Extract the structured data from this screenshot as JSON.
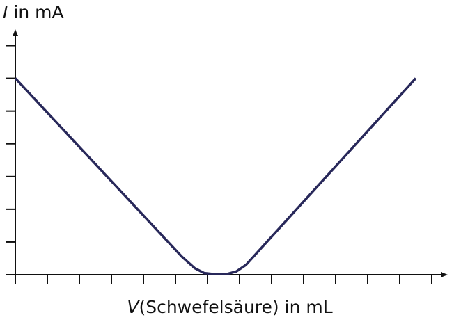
{
  "chart_data": {
    "type": "line",
    "ylabel_symbol": "I",
    "ylabel": "in mA",
    "xlabel_symbol": "V",
    "xlabel": "(Schwefelsäure) in mL",
    "x": [
      0,
      5.2,
      5.6,
      5.9,
      6.2,
      6.6,
      6.9,
      7.2,
      12.5
    ],
    "series": [
      {
        "color": "#28285a",
        "values": [
          6,
          0.55,
          0.2,
          0.05,
          0.02,
          0.02,
          0.1,
          0.3,
          6
        ]
      }
    ],
    "xlim": [
      0,
      13.5
    ],
    "ylim": [
      0,
      7.5
    ],
    "xticks": [
      0,
      1,
      2,
      3,
      4,
      5,
      6,
      7,
      8,
      9,
      10,
      11,
      12,
      13
    ],
    "yticks": [
      0,
      1,
      2,
      3,
      4,
      5,
      6,
      7
    ]
  }
}
